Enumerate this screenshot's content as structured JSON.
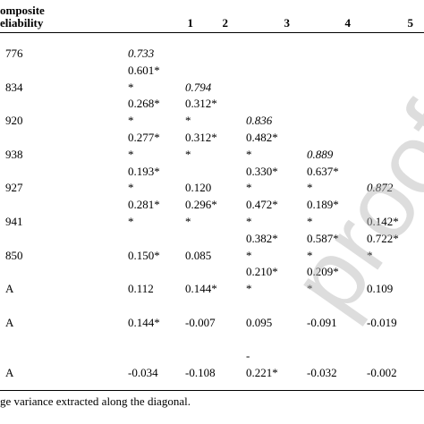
{
  "header": {
    "title_lines": [
      "omposite",
      "eliability"
    ],
    "columns": [
      "1",
      "2",
      "3",
      "4",
      "5"
    ]
  },
  "rows": [
    {
      "label": "776",
      "lines": [
        [
          "0.733",
          null,
          null,
          null,
          null
        ],
        [
          "0.601*",
          null,
          null,
          null,
          null
        ]
      ]
    },
    {
      "label": "834",
      "lines": [
        [
          "*",
          "0.794",
          null,
          null,
          null
        ],
        [
          "0.268*",
          "0.312*",
          null,
          null,
          null
        ]
      ]
    },
    {
      "label": "920",
      "lines": [
        [
          "*",
          "*",
          "0.836",
          null,
          null
        ],
        [
          "0.277*",
          "0.312*",
          "0.482*",
          null,
          null
        ]
      ]
    },
    {
      "label": "938",
      "lines": [
        [
          "*",
          "*",
          "*",
          "0.889",
          null
        ],
        [
          "0.193*",
          null,
          "0.330*",
          "0.637*",
          null
        ]
      ]
    },
    {
      "label": "927",
      "lines": [
        [
          "*",
          "0.120",
          "*",
          "*",
          "0.872"
        ],
        [
          "0.281*",
          "0.296*",
          "0.472*",
          "0.189*",
          null
        ]
      ]
    },
    {
      "label": "941",
      "lines": [
        [
          "*",
          "*",
          "*",
          "*",
          "0.142*"
        ],
        [
          null,
          null,
          "0.382*",
          "0.587*",
          "0.722*"
        ]
      ]
    },
    {
      "label": "850",
      "lines": [
        [
          "0.150*",
          "0.085",
          "*",
          "*",
          "*"
        ],
        [
          null,
          null,
          "0.210*",
          "0.209*",
          null
        ]
      ]
    },
    {
      "label": "A",
      "lines": [
        [
          "0.112",
          "0.144*",
          "*",
          "*",
          "0.109"
        ]
      ]
    },
    {
      "label": "A",
      "lines": [
        [
          "0.144*",
          "-0.007",
          "0.095",
          "-0.091",
          "-0.019"
        ]
      ]
    },
    {
      "label": "A",
      "lines": [
        [
          null,
          null,
          "-",
          null,
          null
        ],
        [
          "-0.034",
          "-0.108",
          "0.221*",
          "-0.032",
          "-0.002"
        ]
      ]
    }
  ],
  "footnote": "ge variance extracted along the diagonal.",
  "watermark": "proof"
}
